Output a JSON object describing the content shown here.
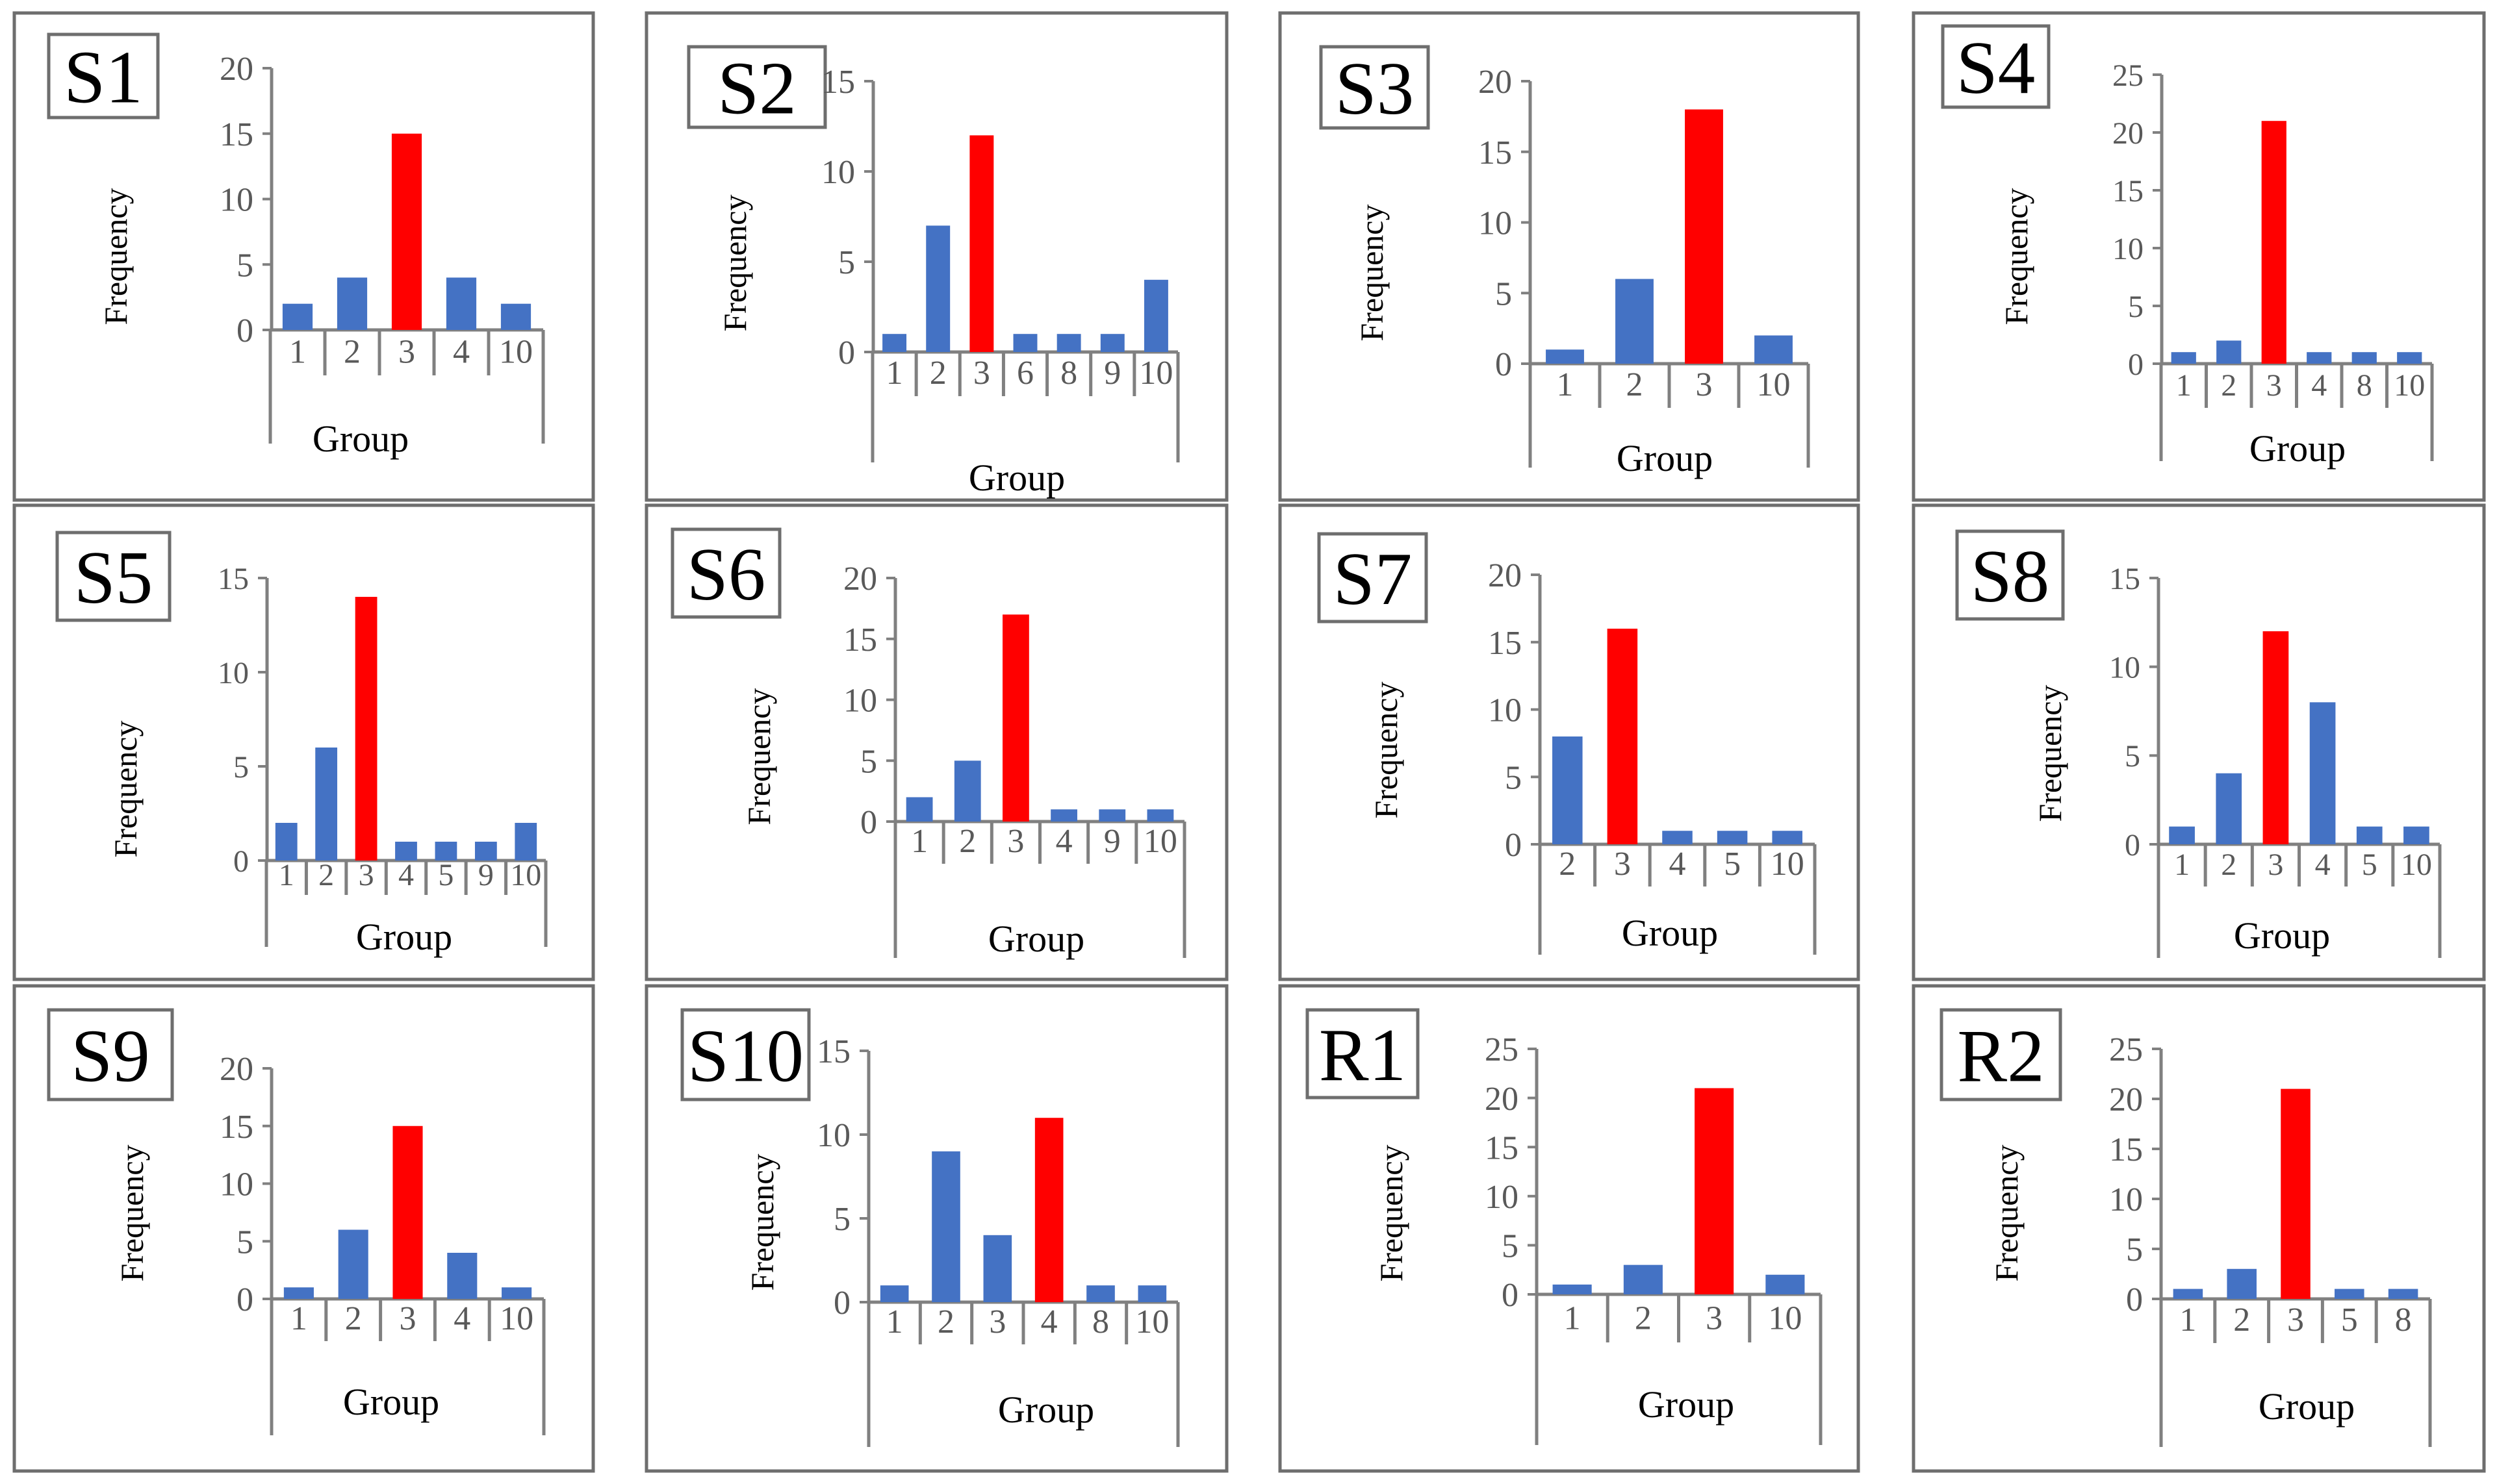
{
  "colors": {
    "primary_bar": "#4472C4",
    "highlight_bar": "#FF0000",
    "axis": "#808080",
    "frame": "#6E6E6E",
    "text": "#000000",
    "tick_text": "#595959"
  },
  "chart_data": [
    {
      "type": "bar",
      "title": "S1",
      "categories": [
        "1",
        "2",
        "3",
        "4",
        "10"
      ],
      "values": [
        2,
        4,
        15,
        4,
        2
      ],
      "highlight_index": 2,
      "ylabel": "Frequency",
      "xlabel": "Group",
      "ylim": [
        0,
        20
      ],
      "yticks": [
        0,
        5,
        10,
        15,
        20
      ]
    },
    {
      "type": "bar",
      "title": "S2",
      "categories": [
        "1",
        "2",
        "3",
        "6",
        "8",
        "9",
        "10"
      ],
      "values": [
        1,
        7,
        12,
        1,
        1,
        1,
        4
      ],
      "highlight_index": 2,
      "ylabel": "Frequency",
      "xlabel": "Group",
      "ylim": [
        0,
        15
      ],
      "yticks": [
        0,
        5,
        10,
        15
      ]
    },
    {
      "type": "bar",
      "title": "S3",
      "categories": [
        "1",
        "2",
        "3",
        "10"
      ],
      "values": [
        1,
        6,
        18,
        2
      ],
      "highlight_index": 2,
      "ylabel": "Frequency",
      "xlabel": "Group",
      "ylim": [
        0,
        20
      ],
      "yticks": [
        0,
        5,
        10,
        15,
        20
      ]
    },
    {
      "type": "bar",
      "title": "S4",
      "categories": [
        "1",
        "2",
        "3",
        "4",
        "8",
        "10"
      ],
      "values": [
        1,
        2,
        21,
        1,
        1,
        1
      ],
      "highlight_index": 2,
      "ylabel": "Frequency",
      "xlabel": "Group",
      "ylim": [
        0,
        25
      ],
      "yticks": [
        0,
        5,
        10,
        15,
        20,
        25
      ]
    },
    {
      "type": "bar",
      "title": "S5",
      "categories": [
        "1",
        "2",
        "3",
        "4",
        "5",
        "9",
        "10"
      ],
      "values": [
        2,
        6,
        14,
        1,
        1,
        1,
        2
      ],
      "highlight_index": 2,
      "ylabel": "Frequency",
      "xlabel": "Group",
      "ylim": [
        0,
        15
      ],
      "yticks": [
        0,
        5,
        10,
        15
      ]
    },
    {
      "type": "bar",
      "title": "S6",
      "categories": [
        "1",
        "2",
        "3",
        "4",
        "9",
        "10"
      ],
      "values": [
        2,
        5,
        17,
        1,
        1,
        1
      ],
      "highlight_index": 2,
      "ylabel": "Frequency",
      "xlabel": "Group",
      "ylim": [
        0,
        20
      ],
      "yticks": [
        0,
        5,
        10,
        15,
        20
      ]
    },
    {
      "type": "bar",
      "title": "S7",
      "categories": [
        "2",
        "3",
        "4",
        "5",
        "10"
      ],
      "values": [
        8,
        16,
        1,
        1,
        1
      ],
      "highlight_index": 1,
      "ylabel": "Frequency",
      "xlabel": "Group",
      "ylim": [
        0,
        20
      ],
      "yticks": [
        0,
        5,
        10,
        15,
        20
      ]
    },
    {
      "type": "bar",
      "title": "S8",
      "categories": [
        "1",
        "2",
        "3",
        "4",
        "5",
        "10"
      ],
      "values": [
        1,
        4,
        12,
        8,
        1,
        1
      ],
      "highlight_index": 2,
      "ylabel": "Frequency",
      "xlabel": "Group",
      "ylim": [
        0,
        15
      ],
      "yticks": [
        0,
        5,
        10,
        15
      ]
    },
    {
      "type": "bar",
      "title": "S9",
      "categories": [
        "1",
        "2",
        "3",
        "4",
        "10"
      ],
      "values": [
        1,
        6,
        15,
        4,
        1
      ],
      "highlight_index": 2,
      "ylabel": "Frequency",
      "xlabel": "Group",
      "ylim": [
        0,
        20
      ],
      "yticks": [
        0,
        5,
        10,
        15,
        20
      ]
    },
    {
      "type": "bar",
      "title": "S10",
      "categories": [
        "1",
        "2",
        "3",
        "4",
        "8",
        "10"
      ],
      "values": [
        1,
        9,
        4,
        11,
        1,
        1
      ],
      "highlight_index": 3,
      "ylabel": "Frequency",
      "xlabel": "Group",
      "ylim": [
        0,
        15
      ],
      "yticks": [
        0,
        5,
        10,
        15
      ]
    },
    {
      "type": "bar",
      "title": "R1",
      "categories": [
        "1",
        "2",
        "3",
        "10"
      ],
      "values": [
        1,
        3,
        21,
        2
      ],
      "highlight_index": 2,
      "ylabel": "Frequency",
      "xlabel": "Group",
      "ylim": [
        0,
        25
      ],
      "yticks": [
        0,
        5,
        10,
        15,
        20,
        25
      ]
    },
    {
      "type": "bar",
      "title": "R2",
      "categories": [
        "1",
        "2",
        "3",
        "5",
        "8"
      ],
      "values": [
        1,
        3,
        21,
        1,
        1
      ],
      "highlight_index": 2,
      "ylabel": "Frequency",
      "xlabel": "Group",
      "ylim": [
        0,
        25
      ],
      "yticks": [
        0,
        5,
        10,
        15,
        20,
        25
      ]
    }
  ]
}
